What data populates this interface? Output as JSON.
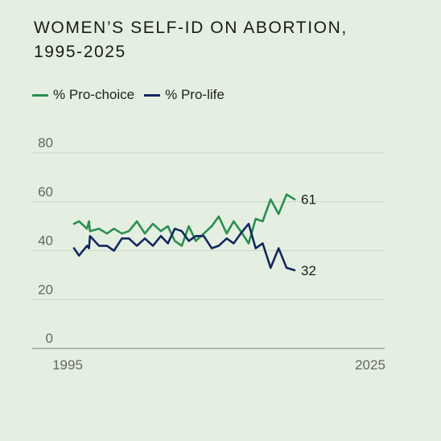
{
  "chart_data": {
    "type": "line",
    "title_line1": "WOMEN’S SELF-ID ON ABORTION,",
    "title_line2": "1995-2025",
    "xlabel": "",
    "ylabel": "",
    "xlim": [
      1995,
      2025
    ],
    "ylim": [
      0,
      80
    ],
    "x_ticks": [
      "1995",
      "2025"
    ],
    "y_ticks": [
      "0",
      "20",
      "40",
      "60",
      "80"
    ],
    "grid": true,
    "legend_position": "top-left",
    "series": [
      {
        "name": "% Pro-choice",
        "color": "#2a8f4f",
        "end_label": "61",
        "points": [
          [
            1995,
            51
          ],
          [
            1995.5,
            52
          ],
          [
            1996.3,
            49
          ],
          [
            1996.5,
            52
          ],
          [
            1996.6,
            48
          ],
          [
            1997.5,
            49
          ],
          [
            1998.3,
            47
          ],
          [
            1999,
            49
          ],
          [
            1999.8,
            47
          ],
          [
            2000.5,
            48
          ],
          [
            2001.3,
            52
          ],
          [
            2002.1,
            47
          ],
          [
            2002.9,
            51
          ],
          [
            2003.7,
            48
          ],
          [
            2004.4,
            50
          ],
          [
            2005.1,
            44
          ],
          [
            2005.8,
            42
          ],
          [
            2006.5,
            50
          ],
          [
            2007.2,
            44
          ],
          [
            2008,
            47
          ],
          [
            2008.8,
            50
          ],
          [
            2009.5,
            54
          ],
          [
            2010.3,
            47
          ],
          [
            2011,
            52
          ],
          [
            2011.7,
            48
          ],
          [
            2012.5,
            43
          ],
          [
            2013.2,
            53
          ],
          [
            2013.9,
            52
          ],
          [
            2014.7,
            61
          ],
          [
            2015.5,
            55
          ],
          [
            2016.3,
            63
          ],
          [
            2017.1,
            61
          ]
        ]
      },
      {
        "name": "% Pro-life",
        "color": "#14275e",
        "end_label": "32",
        "points": [
          [
            1995,
            41
          ],
          [
            1995.5,
            38
          ],
          [
            1996.3,
            42
          ],
          [
            1996.5,
            41
          ],
          [
            1996.6,
            46
          ],
          [
            1997.5,
            42
          ],
          [
            1998.3,
            42
          ],
          [
            1999,
            40
          ],
          [
            1999.8,
            45
          ],
          [
            2000.5,
            45
          ],
          [
            2001.3,
            42
          ],
          [
            2002.1,
            45
          ],
          [
            2002.9,
            42
          ],
          [
            2003.7,
            46
          ],
          [
            2004.4,
            43
          ],
          [
            2005.1,
            49
          ],
          [
            2005.8,
            48
          ],
          [
            2006.5,
            44
          ],
          [
            2007.2,
            46
          ],
          [
            2008,
            46
          ],
          [
            2008.8,
            41
          ],
          [
            2009.5,
            42
          ],
          [
            2010.3,
            45
          ],
          [
            2011,
            43
          ],
          [
            2011.7,
            47
          ],
          [
            2012.5,
            51
          ],
          [
            2013.2,
            41
          ],
          [
            2013.9,
            43
          ],
          [
            2014.7,
            33
          ],
          [
            2015.5,
            41
          ],
          [
            2016.3,
            33
          ],
          [
            2017.1,
            32
          ]
        ]
      }
    ]
  },
  "colors": {
    "background": "#e4efe1",
    "grid": "#c9d6c6",
    "axis": "#9aa79a",
    "tick_text": "#666666"
  }
}
